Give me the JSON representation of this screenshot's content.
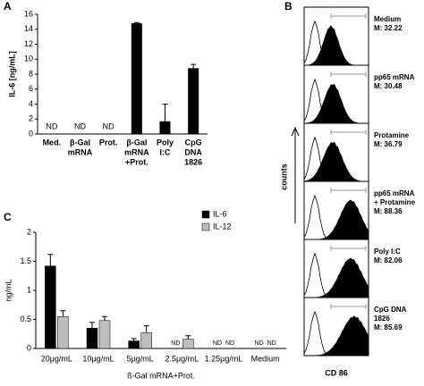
{
  "chart_data": [
    {
      "type": "bar",
      "panel": "A",
      "ylabel": "IL-6 [ng/mL]",
      "categories": [
        [
          "Med."
        ],
        [
          "β-Gal",
          "mRNA"
        ],
        [
          "Prot."
        ],
        [
          "β-Gal",
          "mRNA",
          "+Prot."
        ],
        [
          "Poly",
          "I:C"
        ],
        [
          "CpG",
          "DNA",
          "1826"
        ]
      ],
      "values": [
        null,
        null,
        null,
        14.8,
        1.7,
        8.8
      ],
      "value_labels": [
        "ND",
        "ND",
        "ND",
        null,
        null,
        null
      ],
      "errors": [
        null,
        null,
        null,
        0.1,
        2.3,
        0.5
      ],
      "color": "#000000",
      "ylim": [
        0,
        16
      ],
      "yticks": [
        0,
        2,
        4,
        6,
        8,
        10,
        12,
        14,
        16
      ]
    },
    {
      "type": "histogram-stack",
      "panel": "B",
      "xlabel": "CD 86",
      "ylabel": "counts",
      "panels": [
        [
          "Medium",
          "M: 32.22"
        ],
        [
          "pp65 mRNA",
          "M: 30.48"
        ],
        [
          "Protamine",
          "M: 36.79"
        ],
        [
          "pp65 mRNA",
          "+ Protamine",
          "M: 88.36"
        ],
        [
          "Poly I:C",
          "M: 82.06"
        ],
        [
          "CpG DNA",
          "1826",
          "M: 85.69"
        ]
      ]
    },
    {
      "type": "grouped-bar",
      "panel": "C",
      "ylabel": "ng/mL",
      "xlabel": "ß-Gal mRNA+Prot.",
      "categories": [
        "20µg/mL",
        "10µg/mL",
        "5µg/mL",
        "2.5µg/mL",
        "1.25µg/mL",
        "Medium"
      ],
      "series": [
        {
          "name": "IL-6",
          "color": "#000000",
          "values": [
            1.42,
            0.35,
            0.13,
            null,
            null,
            null
          ],
          "errors": [
            0.2,
            0.1,
            0.04,
            null,
            null,
            null
          ],
          "value_labels": [
            null,
            null,
            null,
            "ND",
            "ND",
            "ND"
          ]
        },
        {
          "name": "IL-12",
          "color": "#bdbdbd",
          "values": [
            0.55,
            0.48,
            0.27,
            0.16,
            null,
            null
          ],
          "errors": [
            0.1,
            0.07,
            0.12,
            0.06,
            null,
            null
          ],
          "value_labels": [
            null,
            null,
            null,
            null,
            "ND",
            "ND"
          ]
        }
      ],
      "ylim": [
        0,
        2
      ],
      "yticks": [
        0,
        0.5,
        1,
        1.5,
        2
      ],
      "legend": "top-right"
    }
  ]
}
